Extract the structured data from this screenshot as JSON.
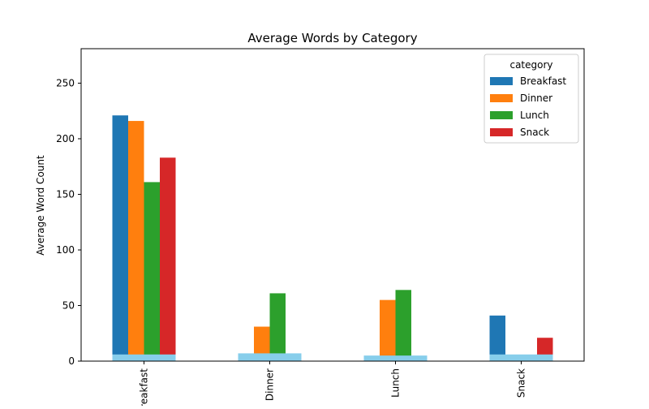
{
  "chart_data": {
    "type": "bar",
    "title": "Average Words by Category",
    "xlabel": "",
    "ylabel": "Average Word Count",
    "ylim": [
      0,
      281
    ],
    "yticks": [
      0,
      50,
      100,
      150,
      200,
      250
    ],
    "categories": [
      "Breakfast",
      "Dinner",
      "Lunch",
      "Snack"
    ],
    "legend": {
      "title": "category",
      "position": "top-right"
    },
    "series": [
      {
        "name": "Breakfast",
        "color": "#1f77b4",
        "values": [
          221,
          0,
          0,
          41
        ]
      },
      {
        "name": "Dinner",
        "color": "#ff7f0e",
        "values": [
          216,
          31,
          55,
          0
        ]
      },
      {
        "name": "Lunch",
        "color": "#2ca02c",
        "values": [
          161,
          61,
          64,
          0
        ]
      },
      {
        "name": "Snack",
        "color": "#d62728",
        "values": [
          183,
          0,
          0,
          21
        ]
      }
    ],
    "baseline_band": {
      "color": "#87ceeb",
      "values": [
        6,
        7,
        5,
        6
      ]
    }
  }
}
